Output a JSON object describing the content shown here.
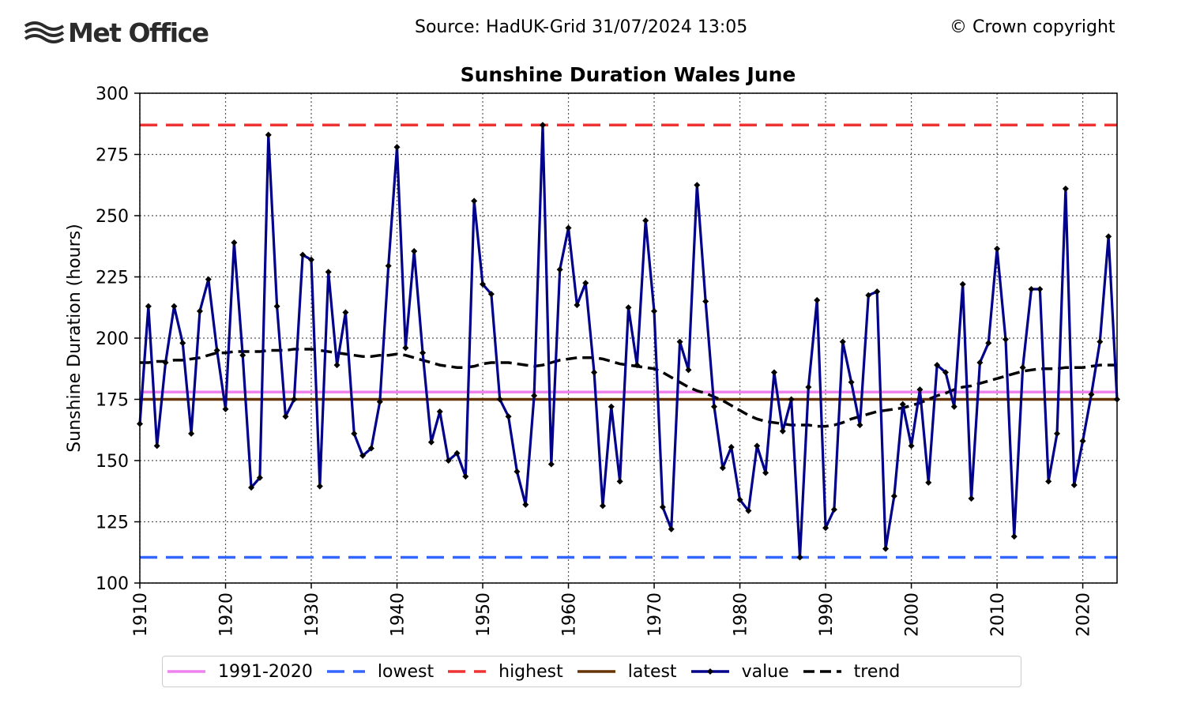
{
  "header": {
    "logo_text": "Met Office",
    "source": "Source: HadUK-Grid 31/07/2024 13:05",
    "copyright": "© Crown copyright"
  },
  "chart_data": {
    "type": "line",
    "title": "Sunshine Duration Wales June",
    "xlabel": "",
    "ylabel": "Sunshine Duration (hours)",
    "xlim": [
      1910,
      2024
    ],
    "ylim": [
      100,
      300
    ],
    "xticks": [
      1910,
      1920,
      1930,
      1940,
      1950,
      1960,
      1970,
      1980,
      1990,
      2000,
      2010,
      2020
    ],
    "yticks": [
      100,
      125,
      150,
      175,
      200,
      225,
      250,
      275,
      300
    ],
    "grid": true,
    "legend_position": "bottom",
    "x": [
      1910,
      1911,
      1912,
      1913,
      1914,
      1915,
      1916,
      1917,
      1918,
      1919,
      1920,
      1921,
      1922,
      1923,
      1924,
      1925,
      1926,
      1927,
      1928,
      1929,
      1930,
      1931,
      1932,
      1933,
      1934,
      1935,
      1936,
      1937,
      1938,
      1939,
      1940,
      1941,
      1942,
      1943,
      1944,
      1945,
      1946,
      1947,
      1948,
      1949,
      1950,
      1951,
      1952,
      1953,
      1954,
      1955,
      1956,
      1957,
      1958,
      1959,
      1960,
      1961,
      1962,
      1963,
      1964,
      1965,
      1966,
      1967,
      1968,
      1969,
      1970,
      1971,
      1972,
      1973,
      1974,
      1975,
      1976,
      1977,
      1978,
      1979,
      1980,
      1981,
      1982,
      1983,
      1984,
      1985,
      1986,
      1987,
      1988,
      1989,
      1990,
      1991,
      1992,
      1993,
      1994,
      1995,
      1996,
      1997,
      1998,
      1999,
      2000,
      2001,
      2002,
      2003,
      2004,
      2005,
      2006,
      2007,
      2008,
      2009,
      2010,
      2011,
      2012,
      2013,
      2014,
      2015,
      2016,
      2017,
      2018,
      2019,
      2020,
      2021,
      2022,
      2023,
      2024
    ],
    "series": [
      {
        "name": "1991-2020",
        "style": "solid",
        "color": "#ee82ee",
        "constant": 178
      },
      {
        "name": "lowest",
        "style": "dashed",
        "color": "#3366ff",
        "constant": 110.5
      },
      {
        "name": "highest",
        "style": "dashed",
        "color": "#ee3333",
        "constant": 287
      },
      {
        "name": "latest",
        "style": "solid",
        "color": "#663300",
        "constant": 175
      },
      {
        "name": "value",
        "style": "solid-markers",
        "color": "#00008b",
        "values": [
          165,
          213,
          156,
          190,
          213,
          198,
          161,
          211,
          224,
          195,
          171,
          239,
          193,
          139,
          143,
          283,
          213,
          168,
          175,
          234,
          232,
          139.5,
          227,
          189,
          210.5,
          161,
          152,
          155,
          174,
          229.5,
          278,
          196,
          235.5,
          194,
          157.5,
          170,
          150,
          153,
          143.5,
          256,
          222,
          218,
          175,
          168,
          145.5,
          132,
          176.5,
          287,
          148.5,
          228,
          245,
          213.5,
          222.5,
          186,
          131.5,
          172,
          141.5,
          212.5,
          189,
          248,
          211,
          131,
          122,
          198.5,
          187,
          262.5,
          215,
          172,
          147,
          155.5,
          134,
          129.5,
          156,
          145,
          186,
          162,
          175,
          110.5,
          180,
          215.5,
          122.5,
          130,
          198.5,
          182,
          164.5,
          217.5,
          219,
          114,
          135.5,
          173,
          156,
          179,
          141,
          189,
          186,
          172,
          222,
          134.5,
          190,
          198,
          236.5,
          199.5,
          119,
          188,
          220,
          220,
          141.5,
          161,
          261,
          140,
          158,
          177,
          198.5,
          241.5,
          175
        ]
      },
      {
        "name": "trend",
        "style": "dashed",
        "color": "#000000",
        "values": [
          190,
          190,
          190.5,
          190.5,
          191,
          191,
          191.5,
          192,
          193,
          194,
          194,
          194.5,
          194.5,
          194.5,
          194.5,
          195,
          195,
          195,
          195.5,
          195.5,
          195.5,
          195,
          194.5,
          194,
          193.5,
          193,
          192.5,
          192.5,
          193,
          193,
          193.5,
          193,
          192,
          191,
          190,
          189,
          188.5,
          188,
          188,
          188.5,
          189.5,
          190,
          190,
          190,
          189.5,
          189,
          188.5,
          189,
          190,
          191,
          191.5,
          192,
          192,
          192,
          191.5,
          190.5,
          189.5,
          189,
          188.5,
          188,
          187.5,
          186,
          184,
          182,
          180,
          178.5,
          177.5,
          176,
          174.5,
          172.5,
          170.5,
          168.5,
          167,
          166,
          165.5,
          165,
          164.5,
          164.5,
          164.5,
          164,
          164,
          164.5,
          165.5,
          167,
          168,
          169,
          170,
          170.5,
          171,
          171.5,
          172.5,
          173.5,
          175,
          176.5,
          177.5,
          179,
          180,
          180.5,
          181.5,
          182.5,
          183.5,
          184.5,
          185.5,
          186.5,
          187,
          187.5,
          187.5,
          187.5,
          188,
          188,
          188,
          188.5,
          189,
          189,
          189
        ]
      }
    ]
  }
}
